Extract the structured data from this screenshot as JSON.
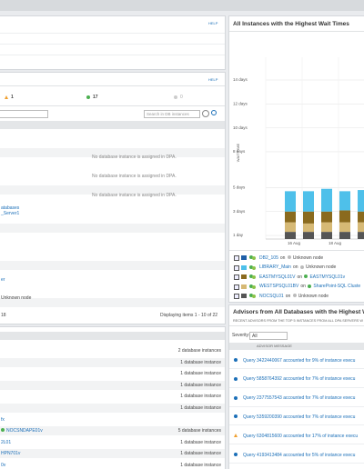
{
  "top_panel": {
    "help": "HELP"
  },
  "status_panel": {
    "help": "HELP",
    "counts": [
      1,
      17,
      0
    ],
    "search_placeholder": "Search in DB instances",
    "rows": [
      "No database instance is assigned in DPA.",
      "No database instance is assigned in DPA.",
      "No database instance is assigned in DPA."
    ],
    "fragments": [
      "atabases",
      "_Server1",
      "er",
      "Unknown node"
    ],
    "page_count": 18,
    "paging": "Displaying items 1 - 10 of 22"
  },
  "server_panel": {
    "rows": [
      {
        "name": "",
        "instances": "2 database instances"
      },
      {
        "name": "",
        "instances": "1 database instance"
      },
      {
        "name": "",
        "instances": "1 database instance"
      },
      {
        "name": "",
        "instances": "1 database instance"
      },
      {
        "name": "",
        "instances": "1 database instance"
      },
      {
        "name": "",
        "instances": "1 database instance"
      },
      {
        "name": "fx",
        "instances": ""
      },
      {
        "name": "NOCSNDAPE01v",
        "instances": "5 database instances"
      },
      {
        "name": "2L01",
        "instances": "1 database instance"
      },
      {
        "name": "HPN701v",
        "instances": "1 database instance"
      },
      {
        "name": "0v",
        "instances": "1 database instance"
      }
    ]
  },
  "wait_panel": {
    "title": "All Instances with the Highest Wait Times",
    "chart": {
      "type": "bar",
      "y_axis_label": "WAIT TIME",
      "ylim": [
        0.7,
        15.9
      ],
      "yticks": [
        {
          "value": 14,
          "label": "14 days"
        },
        {
          "value": 12,
          "label": "12 days"
        },
        {
          "value": 10,
          "label": "10 days"
        },
        {
          "value": 8,
          "label": "8 days"
        },
        {
          "value": 5,
          "label": "5 days"
        },
        {
          "value": 3,
          "label": "3 days"
        },
        {
          "value": 1,
          "label": "1 day"
        }
      ],
      "x_labels": [
        "16 Aug",
        "18 Aug"
      ],
      "series": [
        {
          "name": "NOCSQL01",
          "color": "#555555",
          "values": [
            0.6,
            0.6,
            0.6,
            0.6,
            0.6
          ]
        },
        {
          "name": "WESTSPSQL01BV",
          "color": "#d6b975",
          "values": [
            0.8,
            0.7,
            0.8,
            0.8,
            0.8
          ]
        },
        {
          "name": "EASTMYSQL01V",
          "color": "#8a6a1e",
          "values": [
            0.9,
            1.0,
            0.9,
            1.0,
            0.9
          ]
        },
        {
          "name": "LIBRARY_Main",
          "color": "#4ec0ea",
          "values": [
            1.7,
            1.7,
            1.9,
            1.6,
            1.8
          ]
        }
      ]
    },
    "legend": [
      {
        "name": "DB2_105",
        "on": "on",
        "node": "Unknown node",
        "color": "#1f5fa8"
      },
      {
        "name": "LIBRARY_Main",
        "on": "on",
        "node": "Unknown node",
        "color": "#4ec0ea"
      },
      {
        "name": "EASTMYSQL01V",
        "on": "on",
        "node": "EASTMYSQL01v",
        "color": "#8a6a1e"
      },
      {
        "name": "WESTSPSQL01BV",
        "on": "on",
        "node": "SharePoint-SQL Cluste",
        "color": "#d6b975"
      },
      {
        "name": "NOCSQL01",
        "on": "on",
        "node": "Unknown node",
        "color": "#555555"
      }
    ]
  },
  "advisor_panel": {
    "title": "Advisors from All Databases with the Highest Wai",
    "subtitle": "RECENT ADVISORS FROM THE TOP 5 INSTANCES FROM ALL DPA SERVERS W",
    "severity_label": "Severity:",
    "severity_value": "All",
    "column": "ADVISOR MESSAGE",
    "rows": [
      "Query 3422440067 accounted for 9% of instance execu",
      "Query 5858764392 accounted for 7% of instance execu",
      "Query 2377557543 accounted for 7% of instance execu",
      "Query 5359200390 accounted for 7% of instance execu",
      "Query 6304815600 accounted for 17% of instance execu",
      "Query 4193413484 accounted for 5% of instance execu"
    ],
    "warning_row": 4
  }
}
